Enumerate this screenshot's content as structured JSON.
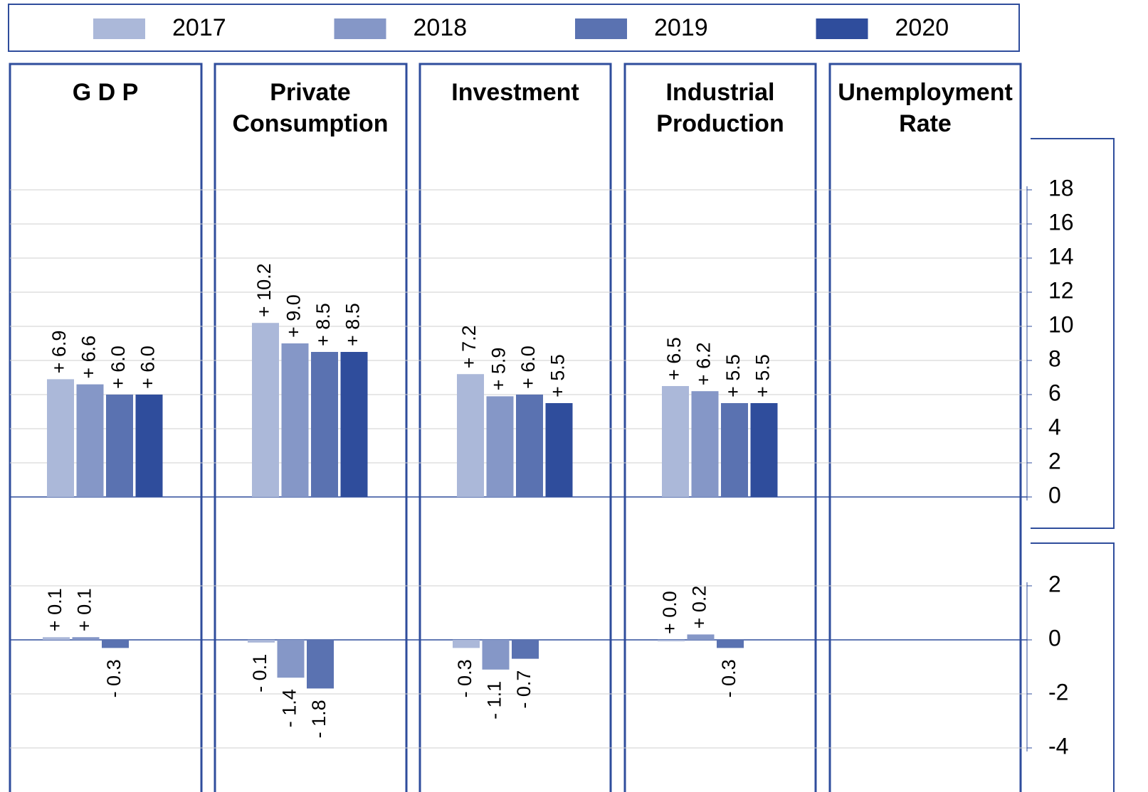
{
  "chart_data": [
    {
      "type": "bar",
      "categories": [
        "G D P",
        "Private Consumption",
        "Investment",
        "Industrial Production",
        "Unemployment Rate"
      ],
      "series": [
        {
          "name": "2017",
          "color": "#abb8d9",
          "values": [
            6.9,
            10.2,
            7.2,
            6.5,
            null
          ],
          "value_labels": [
            "+ 6.9",
            "+ 10.2",
            "+ 7.2",
            "+ 6.5",
            null
          ]
        },
        {
          "name": "2018",
          "color": "#8597c7",
          "values": [
            6.6,
            9.0,
            5.9,
            6.2,
            null
          ],
          "value_labels": [
            "+ 6.6",
            "+ 9.0",
            "+ 5.9",
            "+ 6.2",
            null
          ]
        },
        {
          "name": "2019",
          "color": "#5a72b1",
          "values": [
            6.0,
            8.5,
            6.0,
            5.5,
            null
          ],
          "value_labels": [
            "+ 6.0",
            "+ 8.5",
            "+ 6.0",
            "+ 5.5",
            null
          ]
        },
        {
          "name": "2020",
          "color": "#2f4d9c",
          "values": [
            6.0,
            8.5,
            5.5,
            5.5,
            null
          ],
          "value_labels": [
            "+ 6.0",
            "+ 8.5",
            "+ 5.5",
            "+ 5.5",
            null
          ]
        }
      ],
      "ylim": [
        0,
        18
      ],
      "yticks": [
        0,
        2,
        4,
        6,
        8,
        10,
        12,
        14,
        16,
        18
      ],
      "grid": true
    },
    {
      "type": "bar",
      "series": [
        {
          "color": "#abb8d9",
          "values": [
            0.1,
            -0.1,
            -0.3,
            0.0,
            null
          ],
          "value_labels": [
            "+ 0.1",
            "- 0.1",
            "- 0.3",
            "+ 0.0",
            null
          ]
        },
        {
          "color": "#8597c7",
          "values": [
            0.1,
            -1.4,
            -1.1,
            0.2,
            null
          ],
          "value_labels": [
            "+ 0.1",
            "- 1.4",
            "- 1.1",
            "+ 0.2",
            null
          ]
        },
        {
          "color": "#5a72b1",
          "values": [
            -0.3,
            -1.8,
            -0.7,
            -0.3,
            null
          ],
          "value_labels": [
            "- 0.3",
            "- 1.8",
            "- 0.7",
            "- 0.3",
            null
          ]
        }
      ],
      "ylim": [
        -4,
        2
      ],
      "yticks": [
        -4,
        -2,
        0,
        2
      ],
      "grid": true
    }
  ]
}
